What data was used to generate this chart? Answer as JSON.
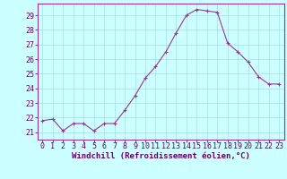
{
  "x": [
    0,
    1,
    2,
    3,
    4,
    5,
    6,
    7,
    8,
    9,
    10,
    11,
    12,
    13,
    14,
    15,
    16,
    17,
    18,
    19,
    20,
    21,
    22,
    23
  ],
  "y": [
    21.8,
    21.9,
    21.1,
    21.6,
    21.6,
    21.1,
    21.6,
    21.6,
    22.5,
    23.5,
    24.7,
    25.5,
    26.5,
    27.8,
    29.0,
    29.4,
    29.3,
    29.2,
    27.1,
    26.5,
    25.8,
    24.8,
    24.3,
    24.3
  ],
  "line_color": "#993399",
  "marker": "+",
  "marker_size": 3,
  "xlabel": "Windchill (Refroidissement éolien,°C)",
  "xlabel_fontsize": 6.5,
  "ylabel_ticks": [
    21,
    22,
    23,
    24,
    25,
    26,
    27,
    28,
    29
  ],
  "xlim": [
    -0.5,
    23.5
  ],
  "ylim": [
    20.5,
    29.8
  ],
  "background_color": "#ccffff",
  "grid_color": "#aadddd",
  "tick_fontsize": 6.0,
  "title": ""
}
